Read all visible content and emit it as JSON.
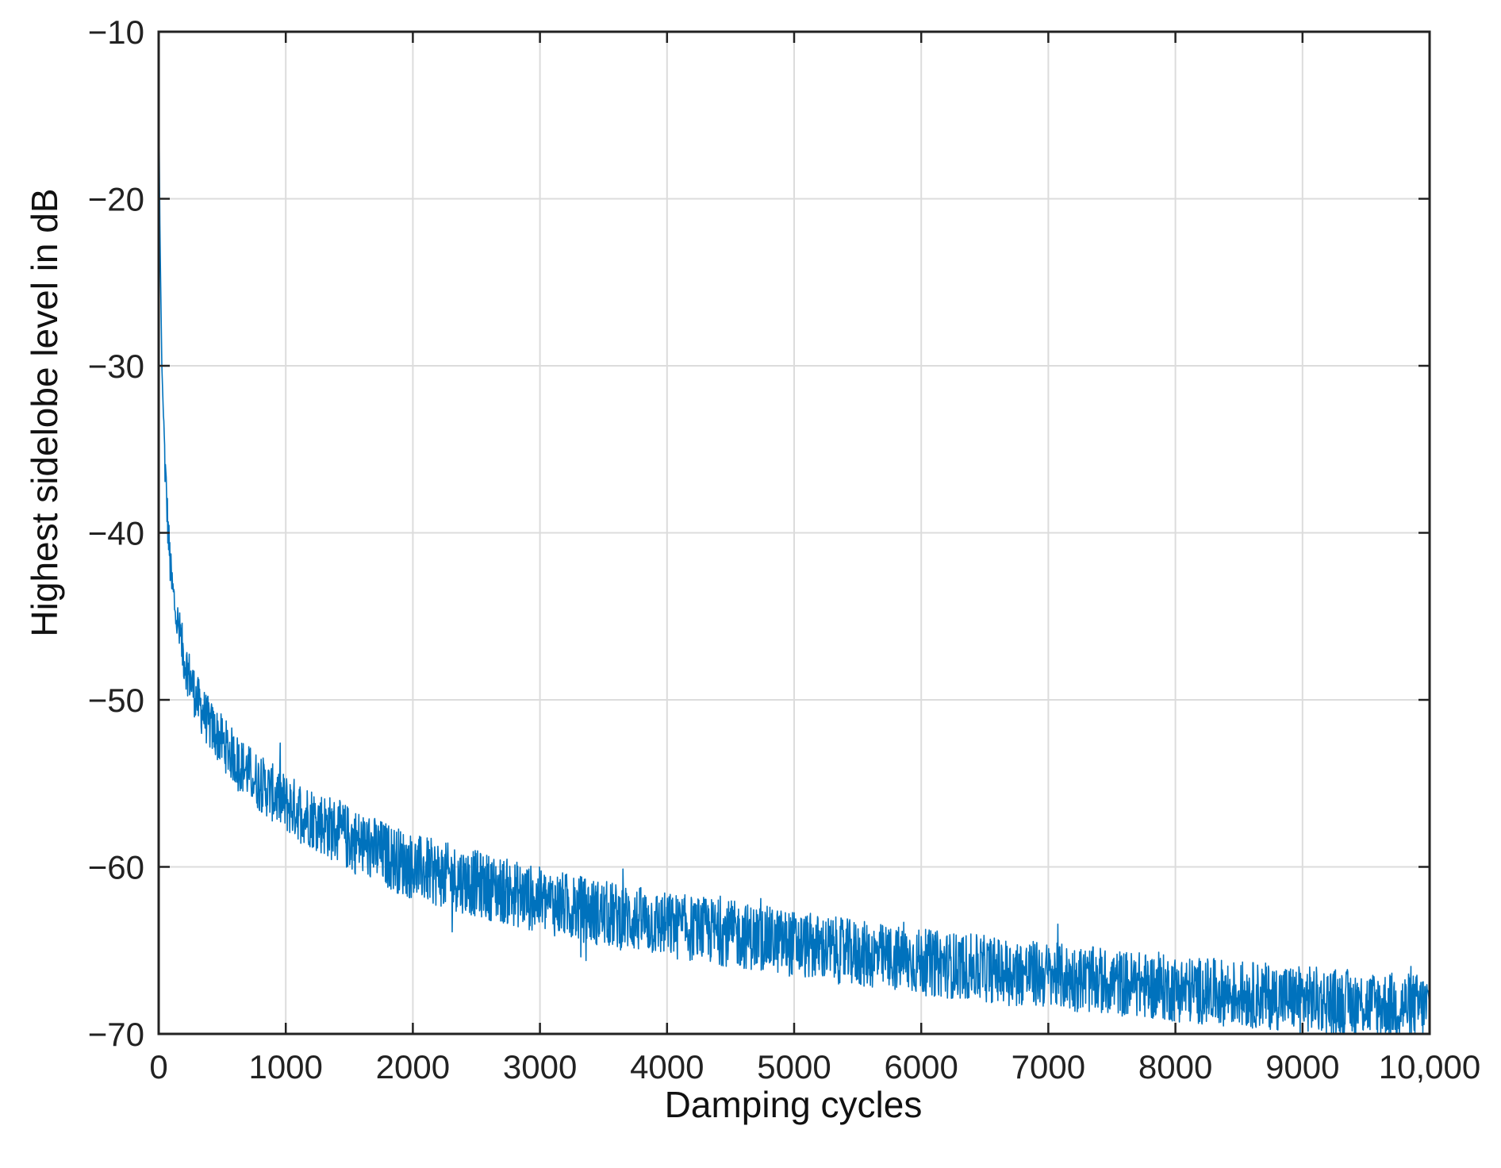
{
  "chart_data": {
    "type": "line",
    "title": "",
    "xlabel": "Damping cycles",
    "ylabel": "Highest sidelobe level in dB",
    "xlim": [
      0,
      10000
    ],
    "ylim": [
      -70,
      -10
    ],
    "x_ticks": [
      0,
      1000,
      2000,
      3000,
      4000,
      5000,
      6000,
      7000,
      8000,
      9000,
      10000
    ],
    "x_tick_labels": [
      "0",
      "1000",
      "2000",
      "3000",
      "4000",
      "5000",
      "6000",
      "7000",
      "8000",
      "9000",
      "10,000"
    ],
    "y_ticks": [
      -70,
      -60,
      -50,
      -40,
      -30,
      -20,
      -10
    ],
    "y_tick_labels": [
      "−70",
      "−60",
      "−50",
      "−40",
      "−30",
      "−20",
      "−10"
    ],
    "grid": true,
    "line_color": "#0072bd",
    "series": [
      {
        "x": [
          0,
          10,
          25,
          50,
          75,
          100,
          150,
          200,
          300,
          400,
          500,
          600,
          700,
          800,
          1000,
          1200,
          1500,
          2000,
          2500,
          3000,
          3500,
          4000,
          4500,
          5000,
          5500,
          6000,
          6500,
          7000,
          7500,
          8000,
          8500,
          9000,
          9500,
          10000
        ],
        "values": [
          -13,
          -22,
          -30,
          -36,
          -40,
          -43,
          -45.5,
          -47.5,
          -50,
          -51.5,
          -52.5,
          -53.5,
          -54.3,
          -55,
          -56.2,
          -57,
          -58.3,
          -60,
          -61,
          -62,
          -62.8,
          -63.5,
          -64,
          -64.6,
          -65.2,
          -65.7,
          -66.1,
          -66.5,
          -66.9,
          -67.3,
          -67.6,
          -67.9,
          -68.2,
          -68.4
        ]
      }
    ]
  }
}
